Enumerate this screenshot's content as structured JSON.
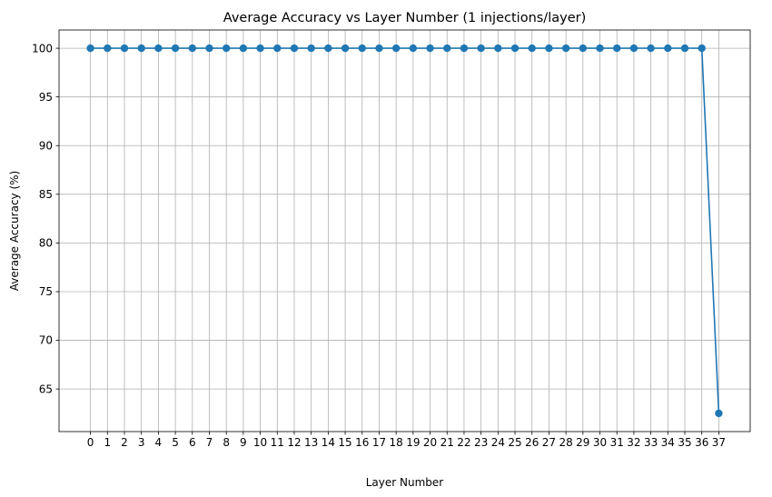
{
  "chart_data": {
    "type": "line",
    "title": "Average Accuracy vs Layer Number (1 injections/layer)",
    "xlabel": "Layer Number",
    "ylabel": "Average Accuracy (%)",
    "x": [
      0,
      1,
      2,
      3,
      4,
      5,
      6,
      7,
      8,
      9,
      10,
      11,
      12,
      13,
      14,
      15,
      16,
      17,
      18,
      19,
      20,
      21,
      22,
      23,
      24,
      25,
      26,
      27,
      28,
      29,
      30,
      31,
      32,
      33,
      34,
      35,
      36,
      37
    ],
    "x_ticks": [
      "0",
      "1",
      "2",
      "3",
      "4",
      "5",
      "6",
      "7",
      "8",
      "9",
      "10",
      "11",
      "12",
      "13",
      "14",
      "15",
      "16",
      "17",
      "18",
      "19",
      "20",
      "21",
      "22",
      "23",
      "24",
      "25",
      "26",
      "27",
      "28",
      "29",
      "30",
      "31",
      "32",
      "33",
      "34",
      "35",
      "36",
      "37"
    ],
    "y": [
      100,
      100,
      100,
      100,
      100,
      100,
      100,
      100,
      100,
      100,
      100,
      100,
      100,
      100,
      100,
      100,
      100,
      100,
      100,
      100,
      100,
      100,
      100,
      100,
      100,
      100,
      100,
      100,
      100,
      100,
      100,
      100,
      100,
      100,
      100,
      100,
      100,
      62.5
    ],
    "y_ticks": [
      65,
      70,
      75,
      80,
      85,
      90,
      95,
      100
    ],
    "y_tick_labels": [
      "65",
      "70",
      "75",
      "80",
      "85",
      "90",
      "95",
      "100"
    ],
    "xlim": [
      -1.85,
      38.85
    ],
    "ylim": [
      60.625,
      101.875
    ],
    "grid": true,
    "marker": "circle",
    "line_color": "#1f77b4",
    "grid_color": "#b0b0b0"
  }
}
